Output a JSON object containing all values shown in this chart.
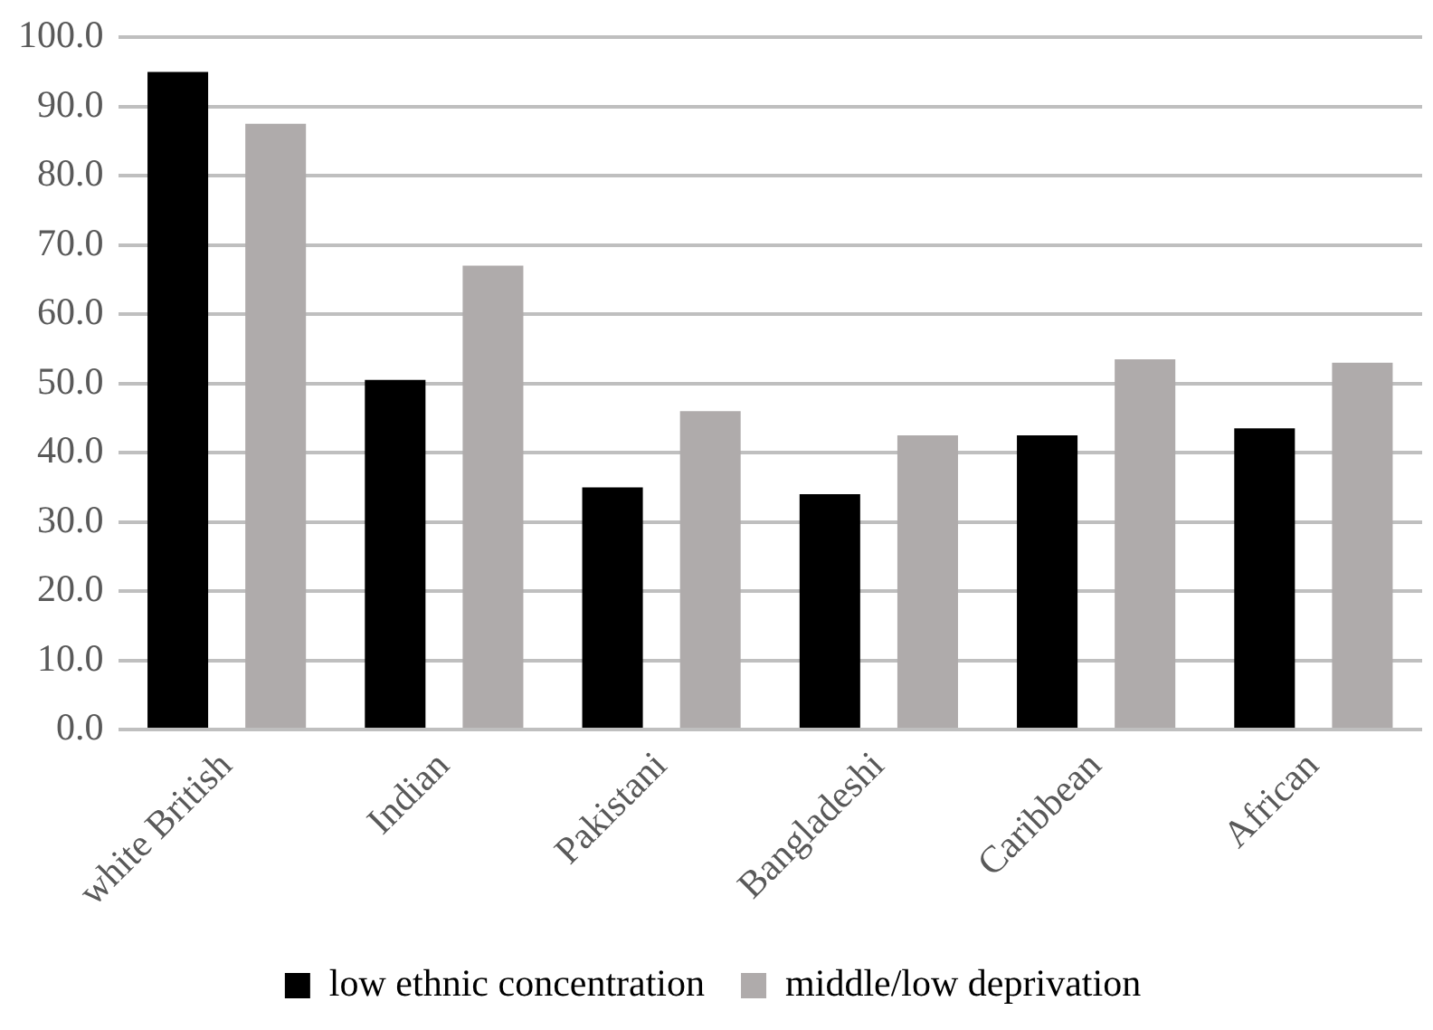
{
  "chart_data": {
    "type": "bar",
    "categories": [
      "white British",
      "Indian",
      "Pakistani",
      "Bangladeshi",
      "Caribbean",
      "African"
    ],
    "series": [
      {
        "name": "low ethnic concentration",
        "color": "#000000",
        "values": [
          95.0,
          50.5,
          35.0,
          34.0,
          42.5,
          43.5
        ]
      },
      {
        "name": "middle/low deprivation",
        "color": "#afabab",
        "values": [
          87.5,
          67.0,
          46.0,
          42.5,
          53.5,
          53.0
        ]
      }
    ],
    "ylim": [
      0,
      100
    ],
    "yticks": [
      {
        "value": 0,
        "label": "0.0"
      },
      {
        "value": 10,
        "label": "10.0"
      },
      {
        "value": 20,
        "label": "20.0"
      },
      {
        "value": 30,
        "label": "30.0"
      },
      {
        "value": 40,
        "label": "40.0"
      },
      {
        "value": 50,
        "label": "50.0"
      },
      {
        "value": 60,
        "label": "60.0"
      },
      {
        "value": 70,
        "label": "70.0"
      },
      {
        "value": 80,
        "label": "80.0"
      },
      {
        "value": 90,
        "label": "90.0"
      },
      {
        "value": 100,
        "label": "100.0"
      }
    ],
    "grid": "y",
    "legend": "bottom"
  }
}
